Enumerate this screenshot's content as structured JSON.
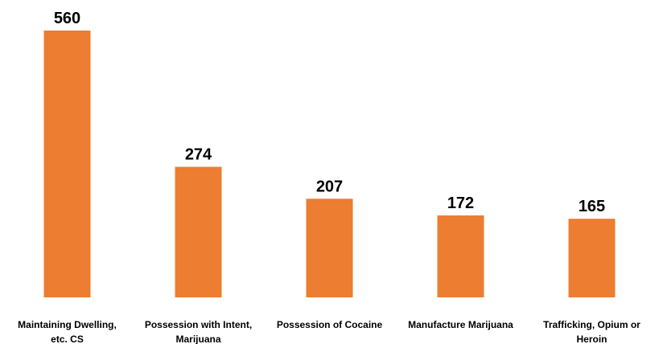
{
  "chart_data": {
    "type": "bar",
    "categories": [
      [
        "Maintaining Dwelling,",
        "etc. CS"
      ],
      [
        "Possession with Intent,",
        "Marijuana"
      ],
      [
        "Possession of Cocaine"
      ],
      [
        "Manufacture Marijuana"
      ],
      [
        "Trafficking, Opium or",
        "Heroin"
      ]
    ],
    "values": [
      560,
      274,
      207,
      172,
      165
    ],
    "data_labels": [
      "560",
      "274",
      "207",
      "172",
      "165"
    ],
    "ylim": [
      0,
      560
    ],
    "grid": false,
    "legend": "none",
    "bar_color": "#ED7D31"
  }
}
